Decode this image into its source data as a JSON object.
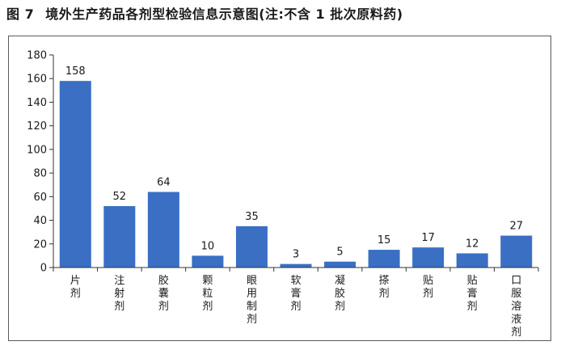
{
  "caption": {
    "figure_number": "图 7",
    "title": "境外生产药品各剂型检验信息示意图(注:不含 1 批次原料药)"
  },
  "colors": {
    "bar": "#3a6fc4",
    "axis": "#333333"
  },
  "chart_data": {
    "type": "bar",
    "title": "境外生产药品各剂型检验信息示意图(注:不含 1 批次原料药)",
    "xlabel": "",
    "ylabel": "",
    "ylim": [
      0,
      180
    ],
    "yticks": [
      0,
      20,
      40,
      60,
      80,
      100,
      120,
      140,
      160,
      180
    ],
    "grid": false,
    "legend": "none",
    "categories": [
      "片剂",
      "注射剂",
      "胶囊剂",
      "颗粒剂",
      "眼用制剂",
      "软膏剂",
      "凝胶剂",
      "搽剂",
      "贴剂",
      "贴膏剂",
      "口服溶液剂"
    ],
    "values": [
      158,
      52,
      64,
      10,
      35,
      3,
      5,
      15,
      17,
      12,
      27
    ]
  }
}
